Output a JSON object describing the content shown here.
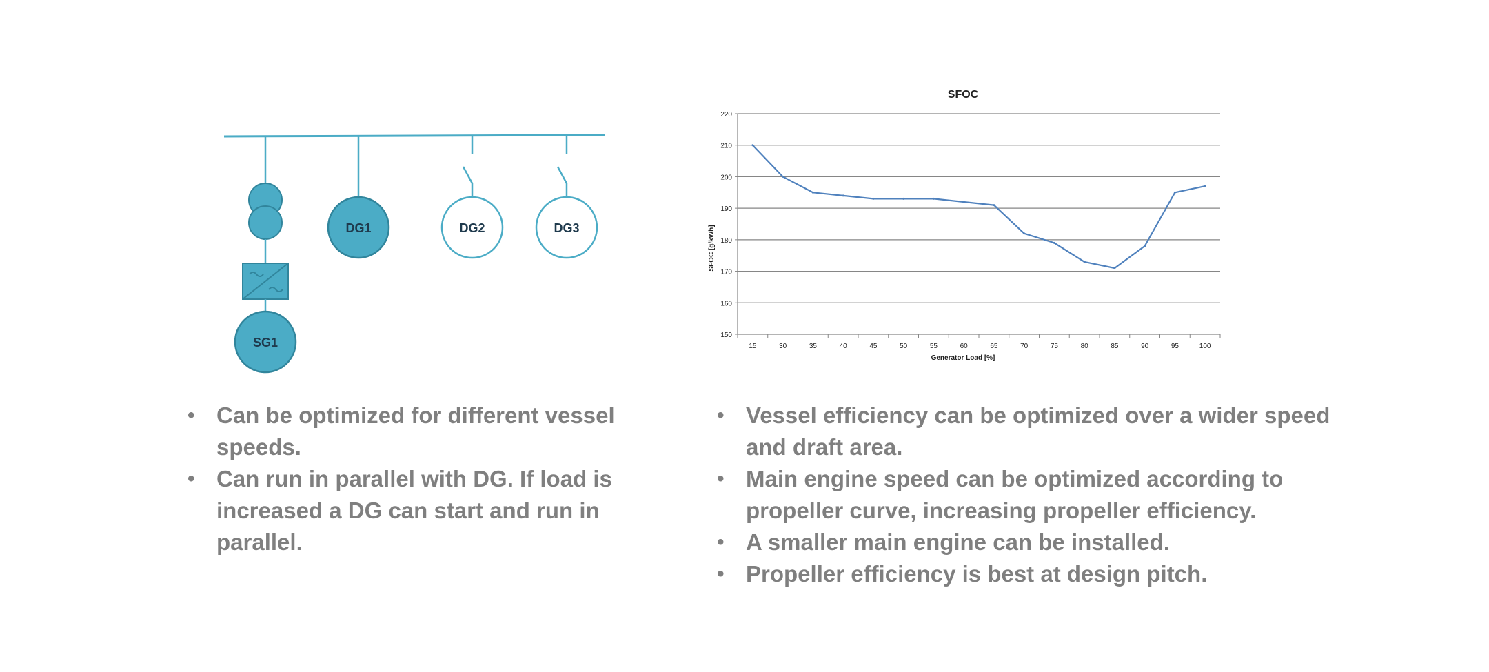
{
  "diagram": {
    "colors": {
      "line": "#4bacc6",
      "fill": "#4bacc6",
      "stroke_dark": "#31859c",
      "label": "#1f3a4d"
    },
    "generators": [
      {
        "label": "DG1",
        "filled": true,
        "breaker_closed": true
      },
      {
        "label": "DG2",
        "filled": false,
        "breaker_closed": false
      },
      {
        "label": "DG3",
        "filled": false,
        "breaker_closed": false
      }
    ],
    "shaft_generator": {
      "label": "SG1",
      "icons": [
        "transformer-icon",
        "frequency-converter-icon"
      ]
    }
  },
  "chart_data": {
    "type": "line",
    "title": "SFOC",
    "xlabel": "Generator Load [%]",
    "ylabel": "SFOC [g/kWh]",
    "categories": [
      "15",
      "30",
      "35",
      "40",
      "45",
      "50",
      "55",
      "60",
      "65",
      "70",
      "75",
      "80",
      "85",
      "90",
      "95",
      "100"
    ],
    "series": [
      {
        "values": [
          210,
          200,
          195,
          194,
          193,
          193,
          193,
          192,
          191,
          182,
          179,
          173,
          171,
          178,
          195,
          197
        ]
      }
    ],
    "ylim": [
      150,
      220
    ],
    "yticks": [
      150,
      160,
      170,
      180,
      190,
      200,
      210,
      220
    ],
    "grid": true,
    "colors": {
      "line": "#4f81bd",
      "grid": "#868686"
    }
  },
  "bullets_left": [
    "Can be optimized for different vessel speeds.",
    "Can run in parallel with DG. If load is increased a DG can start and run in parallel."
  ],
  "bullets_right": [
    "Vessel efficiency can be optimized over a wider speed and draft area.",
    "Main engine speed can be optimized according to propeller curve, increasing propeller efficiency.",
    "A smaller main engine can be installed.",
    "Propeller efficiency is best at design pitch."
  ]
}
